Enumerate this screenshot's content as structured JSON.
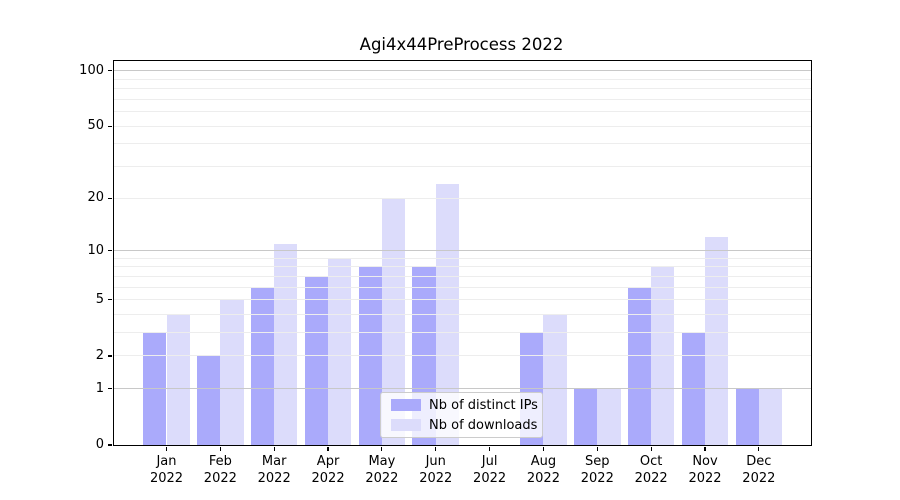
{
  "chart_data": {
    "type": "bar",
    "title": "Agi4x44PreProcess 2022",
    "categories": [
      "Jan 2022",
      "Feb 2022",
      "Mar 2022",
      "Apr 2022",
      "May 2022",
      "Jun 2022",
      "Jul 2022",
      "Aug 2022",
      "Sep 2022",
      "Oct 2022",
      "Nov 2022",
      "Dec 2022"
    ],
    "category_line1": [
      "Jan",
      "Feb",
      "Mar",
      "Apr",
      "May",
      "Jun",
      "Jul",
      "Aug",
      "Sep",
      "Oct",
      "Nov",
      "Dec"
    ],
    "category_line2": "2022",
    "series": [
      {
        "name": "Nb of distinct IPs",
        "color": "#aaaafb",
        "values": [
          3,
          2,
          6,
          7,
          8,
          8,
          0,
          3,
          1,
          6,
          3,
          1
        ]
      },
      {
        "name": "Nb of downloads",
        "color": "#dcdcfb",
        "values": [
          4,
          5,
          11,
          9,
          20,
          24,
          0,
          4,
          1,
          8,
          12,
          1
        ]
      }
    ],
    "xlabel": "",
    "ylabel": "",
    "yscale": "log1p",
    "ylim": [
      0,
      113
    ],
    "yticks": [
      0,
      1,
      2,
      5,
      10,
      20,
      50,
      100
    ],
    "major_gridlines": [
      1,
      10,
      100
    ],
    "minor_gridlines": [
      2,
      3,
      4,
      5,
      6,
      7,
      8,
      9,
      20,
      30,
      40,
      50,
      60,
      70,
      80,
      90
    ],
    "grid": "horizontal",
    "legend_position": "lower center",
    "colors": {
      "axis": "#000000",
      "grid_minor": "#ededed",
      "grid_major": "#c8c8c8",
      "legend_border": "#cccccc"
    }
  }
}
